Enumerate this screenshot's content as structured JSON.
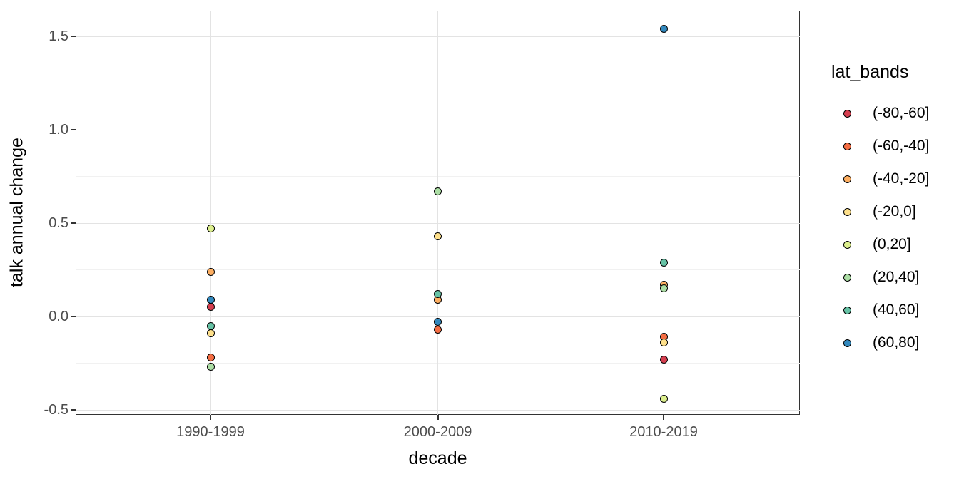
{
  "chart_data": {
    "type": "scatter",
    "title": "",
    "xlabel": "decade",
    "ylabel": "talk annual change",
    "categories": [
      "1990-1999",
      "2000-2009",
      "2010-2019"
    ],
    "y_axis": {
      "major_ticks": [
        1.5,
        1.0,
        0.5,
        0.0,
        -0.5
      ],
      "minor_ticks": [
        1.25,
        0.75,
        0.25,
        -0.25
      ],
      "range": [
        -0.53,
        1.64
      ],
      "grid": true
    },
    "legend": {
      "title": "lat_bands",
      "position": "right",
      "entries": [
        {
          "label": "(-80,-60]",
          "color": "#d53e4f"
        },
        {
          "label": "(-60,-40]",
          "color": "#f46d43"
        },
        {
          "label": "(-40,-20]",
          "color": "#fdae61"
        },
        {
          "label": "(-20,0]",
          "color": "#fee08b"
        },
        {
          "label": "(0,20]",
          "color": "#dcef8d"
        },
        {
          "label": "(20,40]",
          "color": "#abdda4"
        },
        {
          "label": "(40,60]",
          "color": "#66c2a5"
        },
        {
          "label": "(60,80]",
          "color": "#3288bd"
        }
      ]
    },
    "series": [
      {
        "name": "(-80,-60]",
        "color": "#d53e4f",
        "points": [
          {
            "x": "1990-1999",
            "y": 0.05
          },
          {
            "x": "2010-2019",
            "y": -0.23
          }
        ]
      },
      {
        "name": "(-60,-40]",
        "color": "#f46d43",
        "points": [
          {
            "x": "1990-1999",
            "y": -0.22
          },
          {
            "x": "2000-2009",
            "y": -0.07
          },
          {
            "x": "2010-2019",
            "y": -0.11
          }
        ]
      },
      {
        "name": "(-40,-20]",
        "color": "#fdae61",
        "points": [
          {
            "x": "1990-1999",
            "y": 0.24
          },
          {
            "x": "2000-2009",
            "y": 0.09
          },
          {
            "x": "2010-2019",
            "y": 0.17
          }
        ]
      },
      {
        "name": "(-20,0]",
        "color": "#fee08b",
        "points": [
          {
            "x": "1990-1999",
            "y": -0.09
          },
          {
            "x": "2000-2009",
            "y": 0.43
          },
          {
            "x": "2010-2019",
            "y": -0.14
          }
        ]
      },
      {
        "name": "(0,20]",
        "color": "#dcef8d",
        "points": [
          {
            "x": "1990-1999",
            "y": 0.47
          },
          {
            "x": "2010-2019",
            "y": -0.44
          }
        ]
      },
      {
        "name": "(20,40]",
        "color": "#abdda4",
        "points": [
          {
            "x": "1990-1999",
            "y": -0.27
          },
          {
            "x": "2000-2009",
            "y": 0.67
          },
          {
            "x": "2010-2019",
            "y": 0.15
          }
        ]
      },
      {
        "name": "(40,60]",
        "color": "#66c2a5",
        "points": [
          {
            "x": "1990-1999",
            "y": -0.05
          },
          {
            "x": "2000-2009",
            "y": 0.12
          },
          {
            "x": "2010-2019",
            "y": 0.29
          }
        ]
      },
      {
        "name": "(60,80]",
        "color": "#3288bd",
        "points": [
          {
            "x": "1990-1999",
            "y": 0.09
          },
          {
            "x": "2000-2009",
            "y": -0.03
          },
          {
            "x": "2010-2019",
            "y": 1.54
          }
        ]
      }
    ],
    "style": {
      "point_outline": "#000000",
      "grid_major": "#e3e3e3",
      "grid_minor": "#f1f1f1",
      "panel_border": "#333333",
      "tick_label_color": "#4d4d4d",
      "axis_title_color": "#000000",
      "background": "#ffffff"
    }
  }
}
